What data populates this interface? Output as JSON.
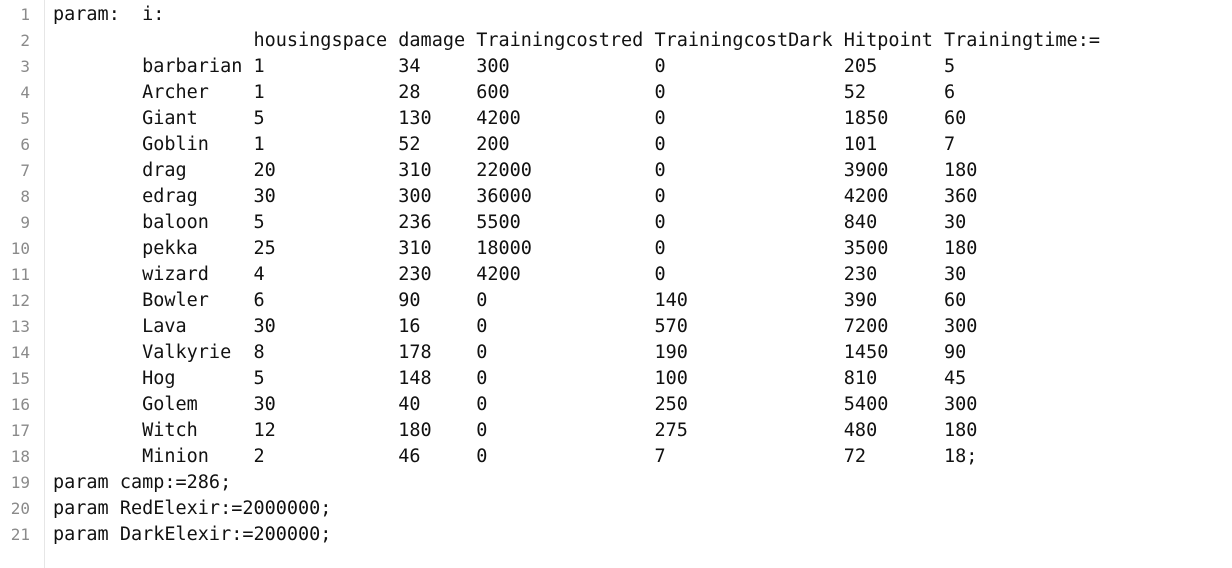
{
  "editor": {
    "lines": [
      {
        "num": "1",
        "text": "param:  i:"
      },
      {
        "num": "2",
        "text": "                  housingspace damage Trainingcostred TrainingcostDark Hitpoint Trainingtime:="
      },
      {
        "num": "3",
        "text": "        barbarian 1            34     300             0                205      5"
      },
      {
        "num": "4",
        "text": "        Archer    1            28     600             0                52       6"
      },
      {
        "num": "5",
        "text": "        Giant     5            130    4200            0                1850     60"
      },
      {
        "num": "6",
        "text": "        Goblin    1            52     200             0                101      7"
      },
      {
        "num": "7",
        "text": "        drag      20           310    22000           0                3900     180"
      },
      {
        "num": "8",
        "text": "        edrag     30           300    36000           0                4200     360"
      },
      {
        "num": "9",
        "text": "        baloon    5            236    5500            0                840      30"
      },
      {
        "num": "10",
        "text": "        pekka     25           310    18000           0                3500     180"
      },
      {
        "num": "11",
        "text": "        wizard    4            230    4200            0                230      30"
      },
      {
        "num": "12",
        "text": "        Bowler    6            90     0               140              390      60"
      },
      {
        "num": "13",
        "text": "        Lava      30           16     0               570              7200     300"
      },
      {
        "num": "14",
        "text": "        Valkyrie  8            178    0               190              1450     90"
      },
      {
        "num": "15",
        "text": "        Hog       5            148    0               100              810      45"
      },
      {
        "num": "16",
        "text": "        Golem     30           40     0               250              5400     300"
      },
      {
        "num": "17",
        "text": "        Witch     12           180    0               275              480      180"
      },
      {
        "num": "18",
        "text": "        Minion    2            46     0               7                72       18;"
      },
      {
        "num": "19",
        "text": "param camp:=286;"
      },
      {
        "num": "20",
        "text": "param RedElexir:=2000000;"
      },
      {
        "num": "21",
        "text": "param DarkElexir:=200000;"
      }
    ]
  }
}
